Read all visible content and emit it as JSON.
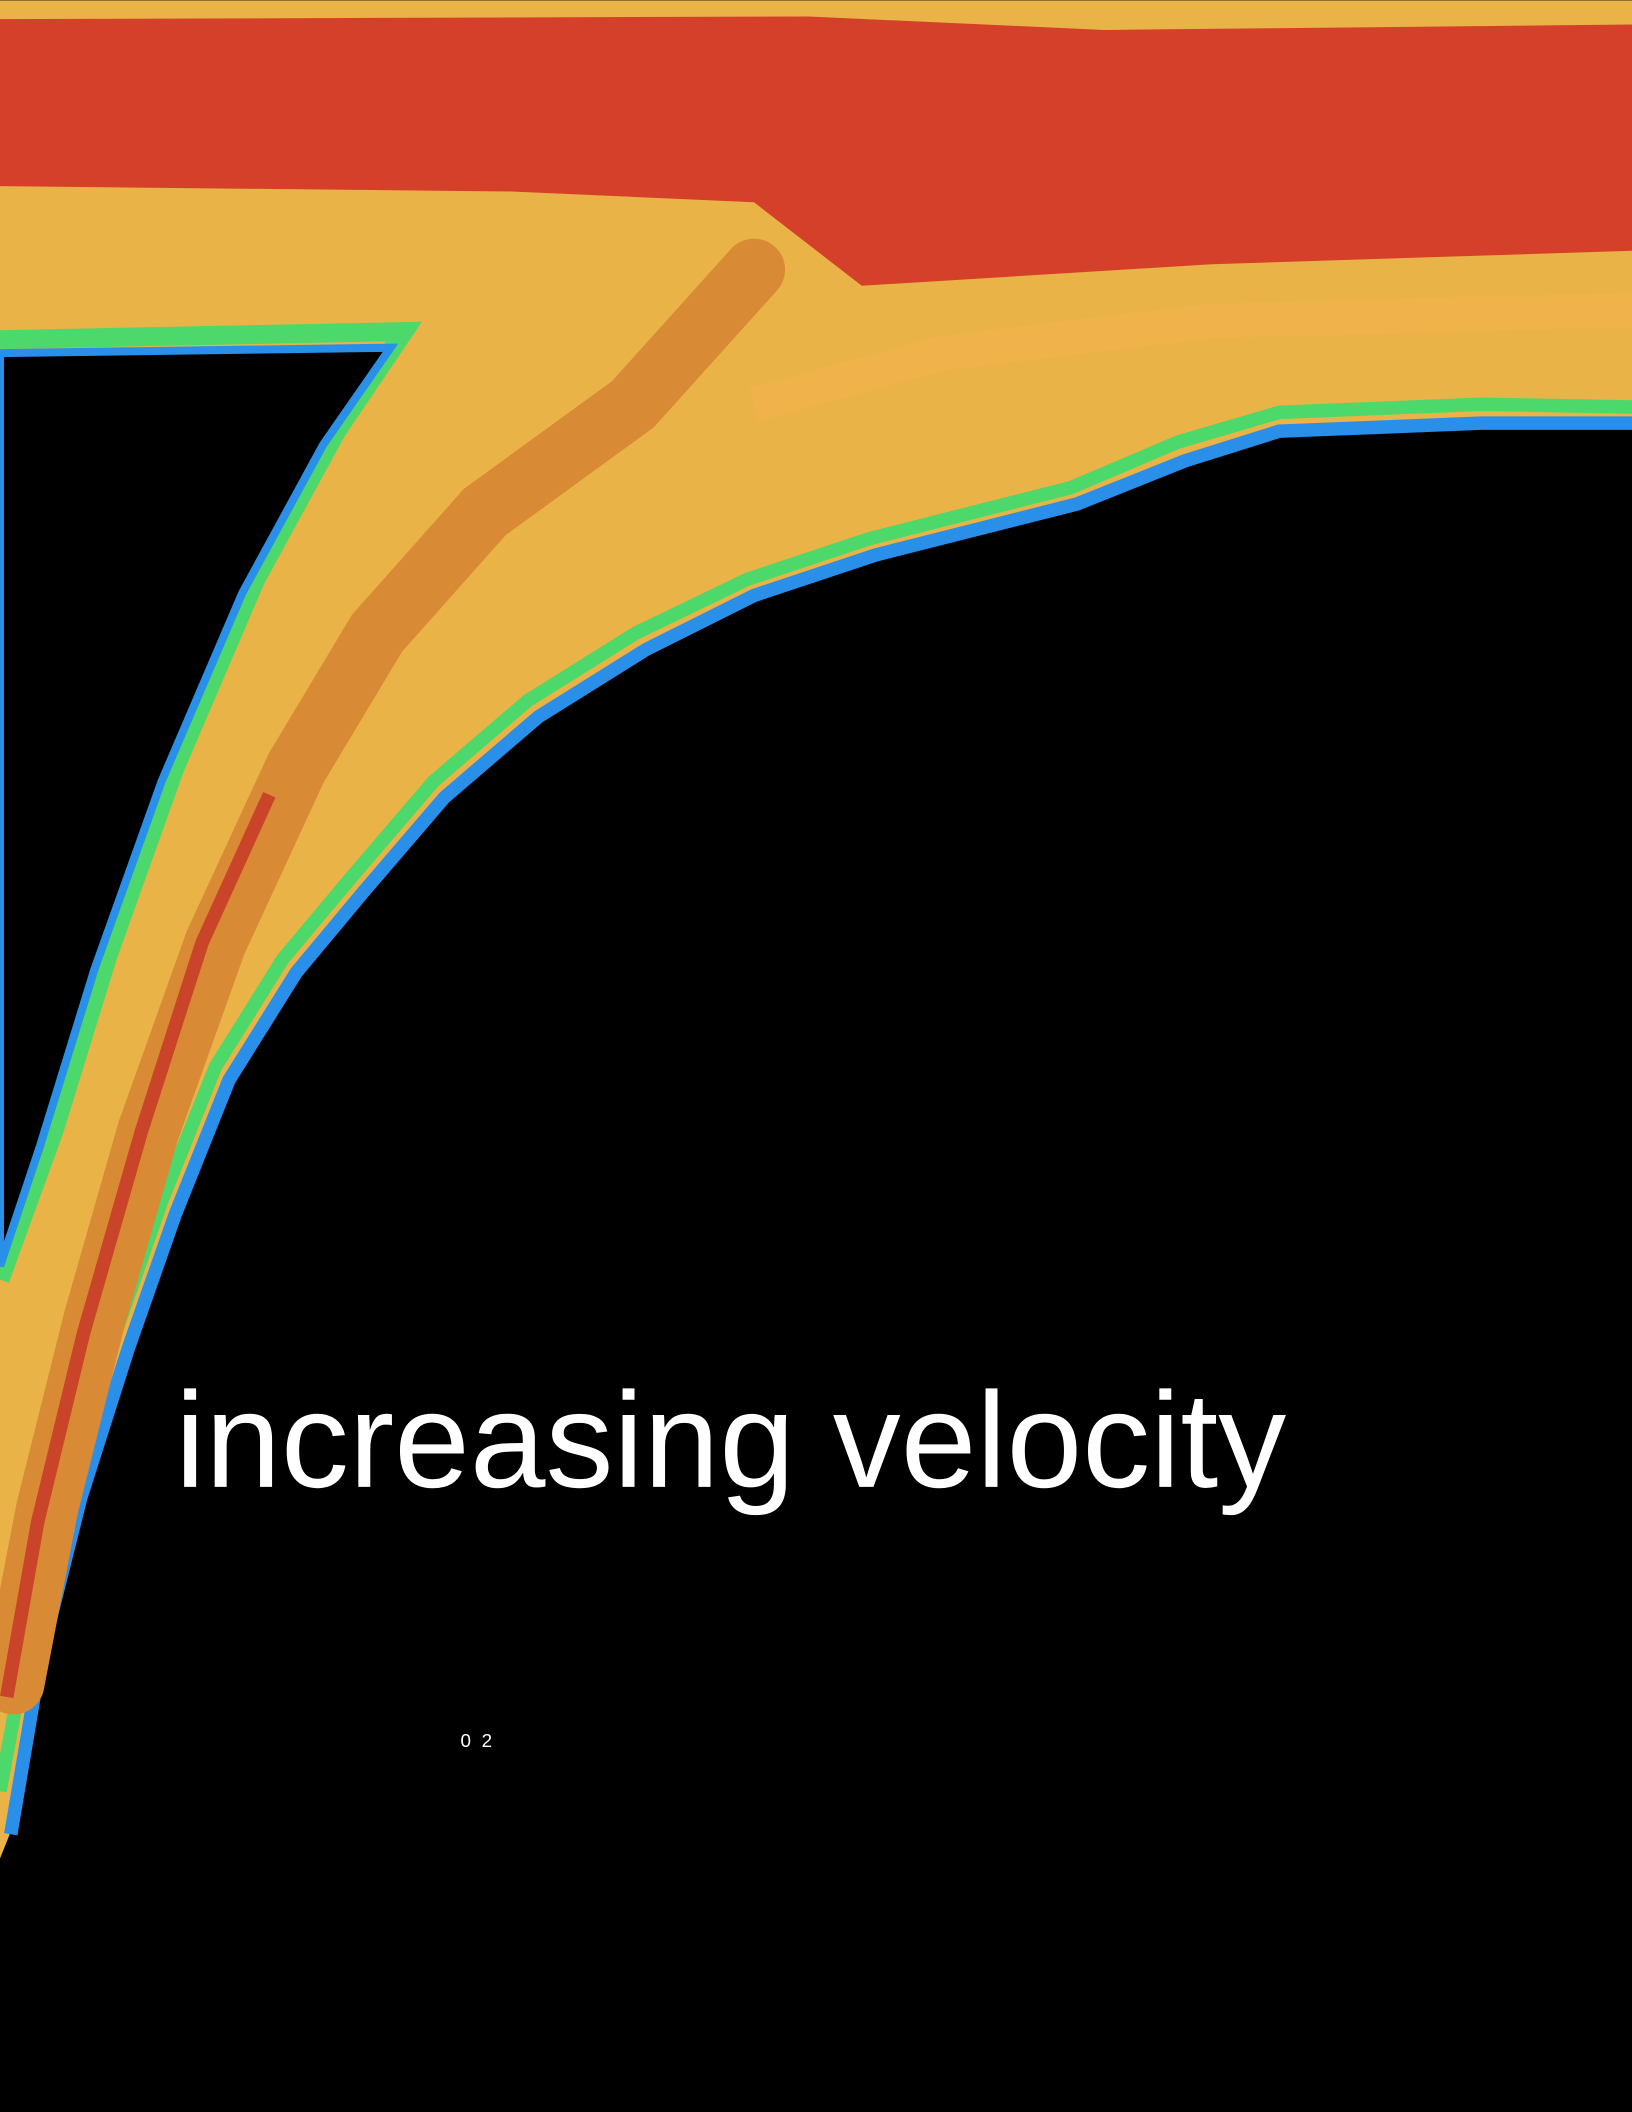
{
  "page": {
    "headline": "increasing velocity",
    "page_number": "0 2"
  }
}
